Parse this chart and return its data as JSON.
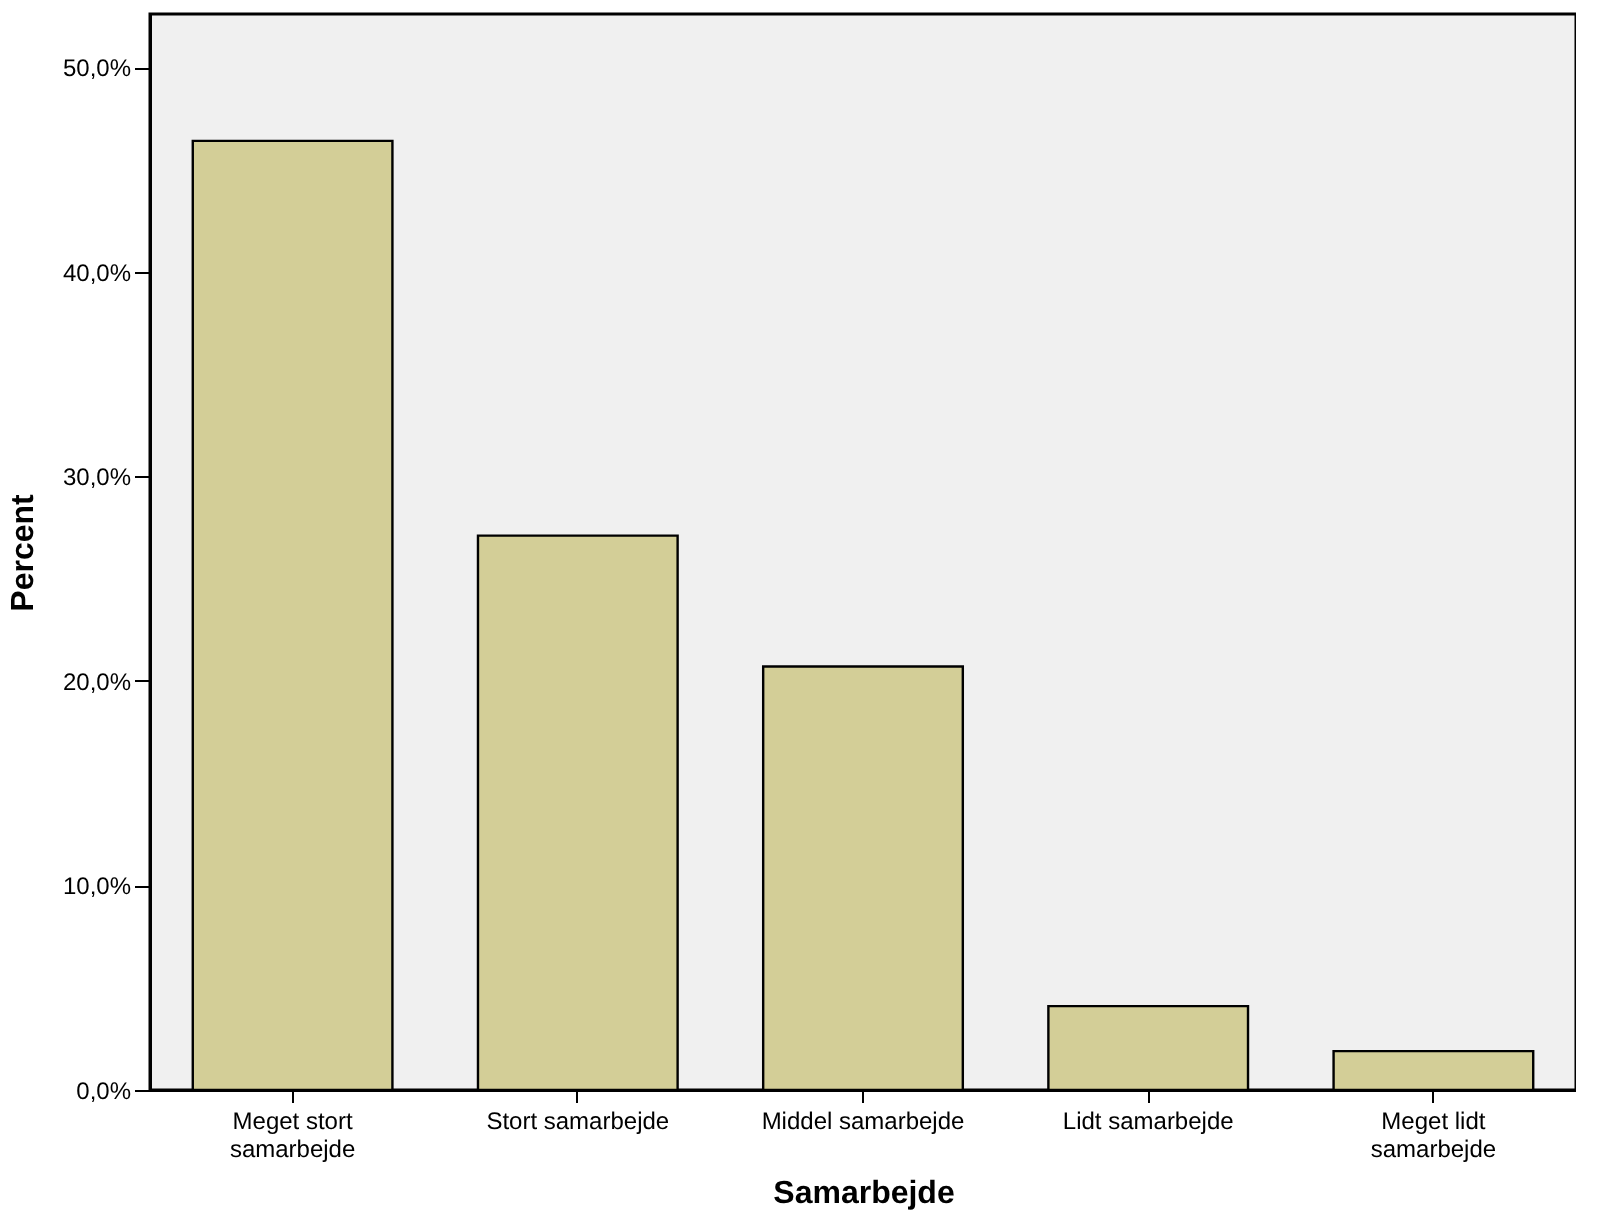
{
  "chart_data": {
    "type": "bar",
    "xlabel": "Samarbejde",
    "ylabel": "Percent",
    "categories": [
      "Meget stort samarbejde",
      "Stort samarbejde",
      "Middel samarbejde",
      "Lidt samarbejde",
      "Meget lidt samarbejde"
    ],
    "values": [
      46.4,
      27.1,
      20.7,
      4.1,
      1.9
    ],
    "color": "#d3ce97",
    "ylim": [
      0,
      52.6
    ],
    "yticks": [
      {
        "value": 0,
        "label": "0,0%"
      },
      {
        "value": 10,
        "label": "10,0%"
      },
      {
        "value": 20,
        "label": "20,0%"
      },
      {
        "value": 30,
        "label": "30,0%"
      },
      {
        "value": 40,
        "label": "40,0%"
      },
      {
        "value": 50,
        "label": "50,0%"
      }
    ],
    "grid": false
  }
}
